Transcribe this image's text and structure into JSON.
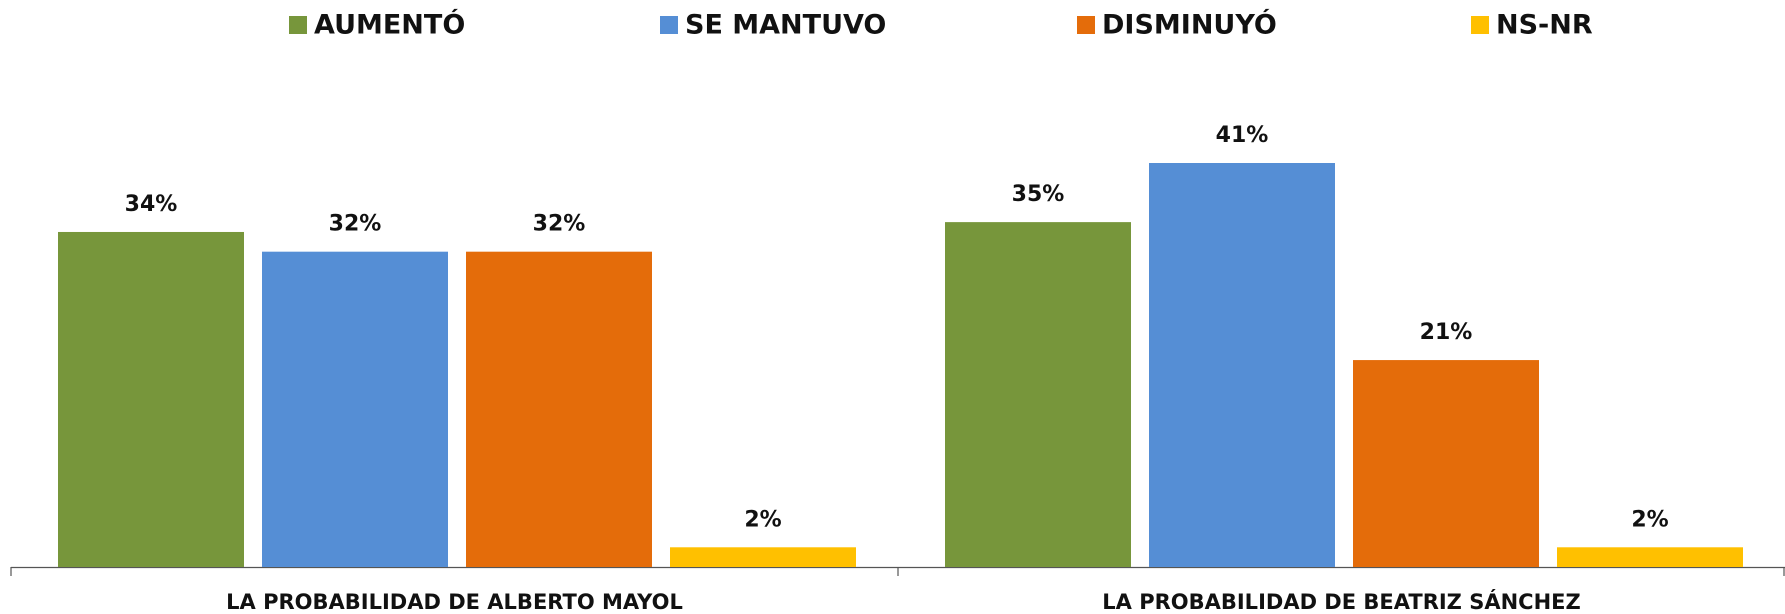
{
  "chart_data": {
    "type": "bar",
    "categories": [
      "LA PROBABILIDAD DE ALBERTO MAYOL",
      "LA PROBABILIDAD DE BEATRIZ SÁNCHEZ"
    ],
    "series": [
      {
        "name": "AUMENTÓ",
        "color": "#77963b",
        "values": [
          34,
          35
        ],
        "value_labels": [
          "34%",
          "35%"
        ]
      },
      {
        "name": "SE MANTUVO",
        "color": "#558ed5",
        "values": [
          32,
          41
        ],
        "value_labels": [
          "32%",
          "41%"
        ]
      },
      {
        "name": "DISMINUYÓ",
        "color": "#e46c0a",
        "values": [
          32,
          21
        ],
        "value_labels": [
          "32%",
          "21%"
        ]
      },
      {
        "name": "NS-NR",
        "color": "#ffc000",
        "values": [
          2,
          2
        ],
        "value_labels": [
          "2%",
          "2%"
        ]
      }
    ],
    "legend": "top"
  }
}
